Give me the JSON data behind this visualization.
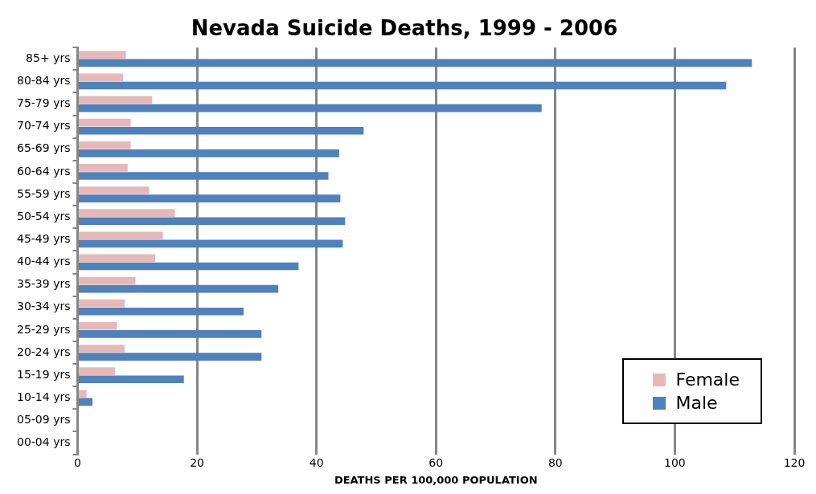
{
  "chart_data": {
    "type": "bar",
    "orientation": "horizontal",
    "title": "Nevada Suicide Deaths, 1999 - 2006",
    "xlabel": "DEATHS PER 100,000 POPULATION",
    "categories": [
      "85+ yrs",
      "80-84 yrs",
      "75-79 yrs",
      "70-74 yrs",
      "65-69 yrs",
      "60-64 yrs",
      "55-59 yrs",
      "50-54 yrs",
      "45-49 yrs",
      "40-44 yrs",
      "35-39 yrs",
      "30-34 yrs",
      "25-29 yrs",
      "20-24 yrs",
      "15-19 yrs",
      "10-14 yrs",
      "05-09 yrs",
      "00-04 yrs"
    ],
    "series": [
      {
        "name": "Female",
        "color": "#e6b9b8",
        "values": [
          8.1,
          7.6,
          12.5,
          8.9,
          8.9,
          8.4,
          12.0,
          16.3,
          14.3,
          13.0,
          9.7,
          7.9,
          6.6,
          7.9,
          6.3,
          1.5,
          0,
          0
        ]
      },
      {
        "name": "Male",
        "color": "#4f81bd",
        "values": [
          112.9,
          108.6,
          77.7,
          47.9,
          43.8,
          42.0,
          44.0,
          44.8,
          44.4,
          37.0,
          33.6,
          27.8,
          30.8,
          30.8,
          17.8,
          2.5,
          0,
          0
        ]
      }
    ],
    "xlim": [
      0,
      120
    ],
    "xticks": [
      0,
      20,
      40,
      60,
      80,
      100,
      120
    ],
    "grid": "x",
    "legend": "bottom right"
  }
}
